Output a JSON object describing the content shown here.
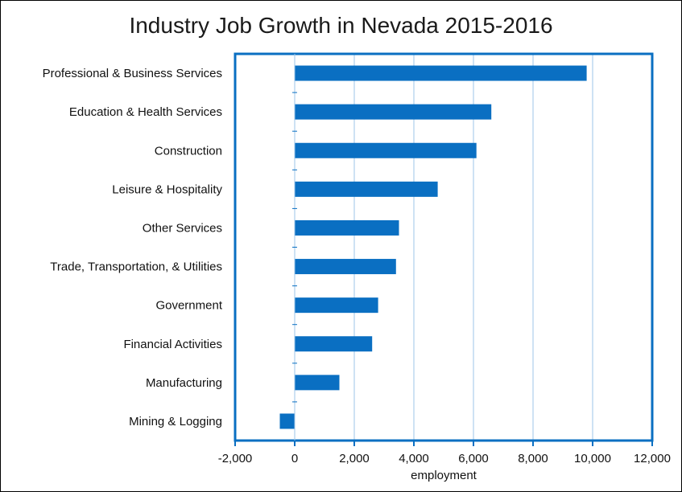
{
  "chart_data": {
    "type": "bar",
    "orientation": "horizontal",
    "title": "Industry Job Growth in Nevada 2015-2016",
    "xlabel": "employment",
    "ylabel": "",
    "xlim": [
      -2000,
      12000
    ],
    "xticks": [
      -2000,
      0,
      2000,
      4000,
      6000,
      8000,
      10000,
      12000
    ],
    "xtick_labels": [
      "-2,000",
      "0",
      "2,000",
      "4,000",
      "6,000",
      "8,000",
      "10,000",
      "12,000"
    ],
    "grid": "vertical",
    "categories": [
      "Professional & Business Services",
      "Education & Health Services",
      "Construction",
      "Leisure & Hospitality",
      "Other Services",
      "Trade, Transportation, & Utilities",
      "Government",
      "Financial Activities",
      "Manufacturing",
      "Mining & Logging"
    ],
    "values": [
      9800,
      6600,
      6100,
      4800,
      3500,
      3400,
      2800,
      2600,
      1500,
      -500
    ],
    "colors": {
      "bar": "#0a6fc2",
      "axis": "#0a6fc2",
      "grid": "#9cc6e8"
    }
  }
}
